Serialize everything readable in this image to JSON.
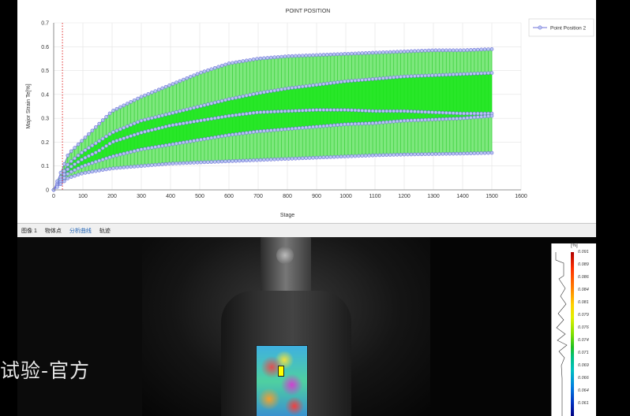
{
  "chart_data": {
    "type": "line",
    "title": "POINT POSITION",
    "xlabel": "Stage",
    "ylabel": "Major Strain Te[%]",
    "xlim": [
      0,
      1600
    ],
    "ylim": [
      0,
      0.7
    ],
    "x_ticks": [
      0,
      100,
      200,
      300,
      400,
      500,
      600,
      700,
      800,
      900,
      1000,
      1100,
      1200,
      1300,
      1400,
      1500,
      1600
    ],
    "y_ticks": [
      0,
      0.1,
      0.2,
      0.3,
      0.4,
      0.5,
      0.6,
      0.7
    ],
    "grid": true,
    "legend_position": "top-right",
    "series_color": "#6f72d8",
    "fill_color": "#19e619",
    "series": [
      {
        "name": "Point Position 2",
        "x": [
          0,
          50,
          100,
          150,
          200,
          300,
          400,
          500,
          600,
          700,
          800,
          900,
          1000,
          1100,
          1200,
          1300,
          1400,
          1500
        ],
        "values": [
          0.0,
          0.15,
          0.21,
          0.27,
          0.33,
          0.39,
          0.44,
          0.49,
          0.53,
          0.55,
          0.56,
          0.565,
          0.57,
          0.575,
          0.58,
          0.585,
          0.585,
          0.59
        ]
      },
      {
        "x": [
          0,
          50,
          100,
          150,
          200,
          300,
          400,
          500,
          600,
          700,
          800,
          900,
          1000,
          1100,
          1200,
          1300,
          1400,
          1500
        ],
        "values": [
          0.0,
          0.11,
          0.16,
          0.2,
          0.24,
          0.29,
          0.32,
          0.35,
          0.38,
          0.405,
          0.425,
          0.44,
          0.455,
          0.465,
          0.475,
          0.48,
          0.485,
          0.49
        ]
      },
      {
        "x": [
          0,
          50,
          100,
          150,
          200,
          300,
          400,
          500,
          600,
          700,
          800,
          900,
          1000,
          1100,
          1200,
          1300,
          1400,
          1500
        ],
        "values": [
          0.0,
          0.09,
          0.13,
          0.16,
          0.2,
          0.24,
          0.27,
          0.29,
          0.31,
          0.325,
          0.33,
          0.335,
          0.335,
          0.33,
          0.33,
          0.325,
          0.32,
          0.32
        ]
      },
      {
        "x": [
          0,
          50,
          100,
          150,
          200,
          300,
          400,
          500,
          600,
          700,
          800,
          900,
          1000,
          1100,
          1200,
          1300,
          1400,
          1500
        ],
        "values": [
          0.0,
          0.07,
          0.1,
          0.12,
          0.14,
          0.17,
          0.19,
          0.21,
          0.23,
          0.245,
          0.255,
          0.265,
          0.275,
          0.28,
          0.29,
          0.295,
          0.3,
          0.31
        ]
      },
      {
        "x": [
          0,
          50,
          100,
          150,
          200,
          300,
          400,
          500,
          600,
          700,
          800,
          900,
          1000,
          1100,
          1200,
          1300,
          1400,
          1500
        ],
        "values": [
          0.0,
          0.05,
          0.07,
          0.08,
          0.09,
          0.1,
          0.11,
          0.115,
          0.12,
          0.125,
          0.13,
          0.135,
          0.14,
          0.145,
          0.148,
          0.15,
          0.152,
          0.155
        ]
      }
    ]
  },
  "tabs": [
    {
      "label": "图像 1",
      "active": false
    },
    {
      "label": "物体点",
      "active": false
    },
    {
      "label": "分析曲线",
      "active": true
    },
    {
      "label": "轨迹",
      "active": false
    }
  ],
  "color_scale": {
    "unit": "[%]",
    "labels": [
      "0.091",
      "0.089",
      "0.086",
      "0.084",
      "0.081",
      "0.079",
      "0.076",
      "0.074",
      "0.071",
      "0.069",
      "0.066",
      "0.064",
      "0.061"
    ]
  },
  "overlay_text": "试验-官方"
}
